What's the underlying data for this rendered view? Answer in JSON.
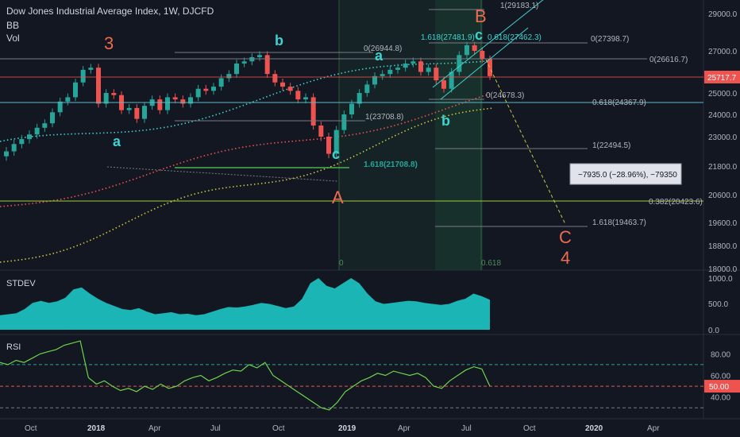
{
  "header": {
    "symbol_title": "Dow Jones Industrial Average Index, 1W, DJCFD",
    "indicator_1": "BB",
    "indicator_2": "Vol"
  },
  "colors": {
    "background": "#131722",
    "bull": "#26a69a",
    "bear": "#ef5350",
    "teal": "#3fd3d0",
    "wave_red": "#ef6a50",
    "stdev_fill": "#1bb5b5",
    "rsi_line": "#6ed44a",
    "grid": "#2a2e39"
  },
  "chart_data": [
    {
      "type": "line",
      "panel": "price",
      "y_ticks": [
        "29000.0",
        "27000.0",
        "25000.0",
        "24000.0",
        "23000.0",
        "21800.0",
        "20600.0",
        "19600.0",
        "18800.0",
        "18000.0"
      ],
      "last_price_label": "25717.7",
      "x_ticks": [
        "Oct",
        "2018",
        "Apr",
        "Jul",
        "Oct",
        "2019",
        "Apr",
        "Jul",
        "Oct",
        "2020",
        "Apr"
      ],
      "fib_labels": [
        "1(29183.1)",
        "1.618(27481.9)",
        "0.618(27462.3)",
        "0(27398.7)",
        "0(26944.8)",
        "0(26616.7)",
        "0(24678.3)",
        "0.618(24367.9)",
        "1(23708.8)",
        "1(22494.5)",
        "1.618(21708.8)",
        "0.382(20423.6)",
        "1.618(19463.7)"
      ],
      "fib_bottom_labels": [
        "0",
        "0.618"
      ],
      "measure_label": "−7935.0 (−28.96%), −79350",
      "wave_labels_red": [
        "3",
        "B",
        "A",
        "C",
        "4"
      ],
      "wave_labels_teal": [
        "a",
        "b",
        "a",
        "c",
        "b",
        "c"
      ],
      "close": [
        22400,
        22700,
        22900,
        23100,
        23400,
        23600,
        24100,
        24600,
        24800,
        25500,
        26100,
        26200,
        24500,
        25000,
        24900,
        24200,
        24300,
        23800,
        24400,
        24700,
        24200,
        24800,
        24700,
        24500,
        24800,
        25200,
        25100,
        25300,
        25700,
        25900,
        26400,
        26500,
        26700,
        26800,
        25900,
        25500,
        25300,
        25100,
        24700,
        24800,
        23500,
        23000,
        22300,
        23300,
        24000,
        24500,
        25000,
        25400,
        25800,
        25900,
        26100,
        26200,
        26400,
        26500,
        26000,
        26200,
        25600,
        25200,
        26000,
        26800,
        27300,
        27000,
        26600,
        25800
      ]
    },
    {
      "type": "area",
      "panel": "stdev",
      "title": "STDEV",
      "y_ticks": [
        "1000.0",
        "500.0",
        "0.0"
      ],
      "values": [
        280,
        300,
        320,
        400,
        520,
        560,
        520,
        550,
        620,
        780,
        820,
        700,
        600,
        520,
        460,
        400,
        380,
        420,
        350,
        300,
        320,
        340,
        300,
        310,
        280,
        300,
        350,
        400,
        440,
        430,
        450,
        480,
        520,
        500,
        460,
        420,
        450,
        600,
        900,
        1000,
        850,
        800,
        900,
        1000,
        900,
        700,
        550,
        500,
        520,
        540,
        560,
        550,
        520,
        500,
        480,
        500,
        560,
        600,
        700,
        650,
        580
      ]
    },
    {
      "type": "line",
      "panel": "rsi",
      "title": "RSI",
      "y_ticks": [
        "80.00",
        "60.00",
        "40.00"
      ],
      "last_value_label": "50.00",
      "values": [
        72,
        70,
        74,
        72,
        76,
        80,
        82,
        84,
        88,
        90,
        92,
        58,
        52,
        55,
        50,
        46,
        48,
        45,
        50,
        47,
        52,
        48,
        50,
        55,
        58,
        60,
        55,
        58,
        62,
        65,
        64,
        70,
        67,
        72,
        60,
        55,
        50,
        45,
        40,
        35,
        30,
        28,
        35,
        45,
        50,
        55,
        58,
        62,
        60,
        64,
        62,
        60,
        62,
        58,
        50,
        48,
        55,
        60,
        65,
        68,
        66,
        50
      ]
    }
  ]
}
